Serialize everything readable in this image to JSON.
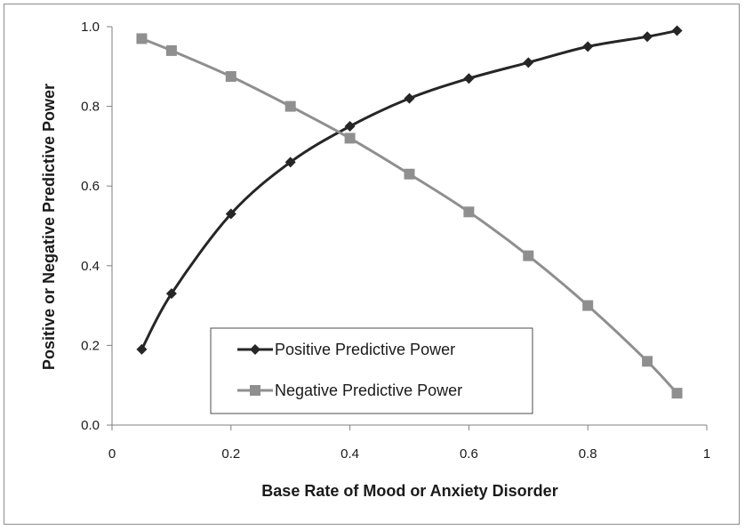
{
  "chart_data": {
    "type": "line",
    "title": "",
    "xlabel": "Base Rate of Mood or Anxiety Disorder",
    "ylabel": "Positive or Negative Predictive Power",
    "xlim": [
      0,
      1
    ],
    "ylim": [
      0.0,
      1.0
    ],
    "x_ticks": [
      "0",
      "0.2",
      "0.4",
      "0.6",
      "0.8",
      "1"
    ],
    "y_ticks": [
      "0.0",
      "0.2",
      "0.4",
      "0.6",
      "0.8",
      "1.0"
    ],
    "grid": false,
    "legend_position": "bottom-left",
    "x": [
      0.05,
      0.1,
      0.2,
      0.3,
      0.4,
      0.5,
      0.6,
      0.7,
      0.8,
      0.9,
      0.95
    ],
    "series": [
      {
        "name": "Positive Predictive Power",
        "marker": "diamond",
        "color": "#262626",
        "values": [
          0.19,
          0.33,
          0.53,
          0.66,
          0.75,
          0.82,
          0.87,
          0.91,
          0.95,
          0.975,
          0.99
        ]
      },
      {
        "name": "Negative Predictive Power",
        "marker": "square",
        "color": "#8f8f8f",
        "values": [
          0.97,
          0.94,
          0.875,
          0.8,
          0.72,
          0.63,
          0.535,
          0.425,
          0.3,
          0.16,
          0.08
        ]
      }
    ]
  }
}
